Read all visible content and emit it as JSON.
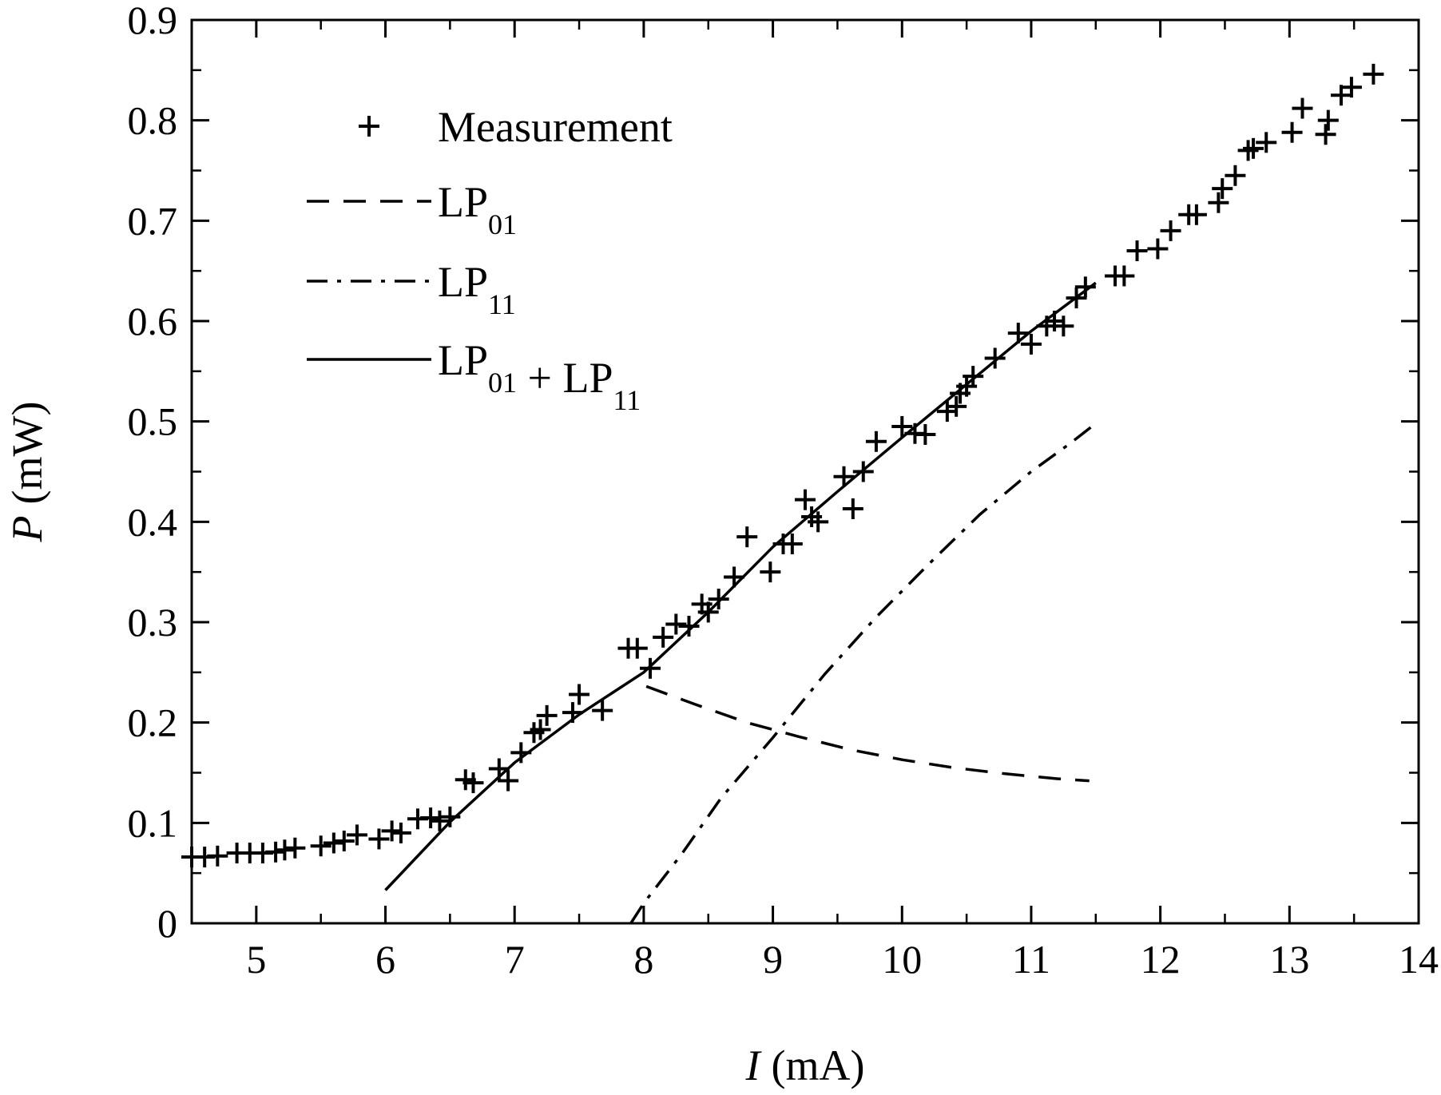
{
  "chart_data": {
    "type": "scatter",
    "title": "",
    "xlabel": {
      "symbol": "I",
      "unit": "(mA)"
    },
    "ylabel": {
      "symbol": "P",
      "unit": "(mW)"
    },
    "xlim": [
      4.5,
      14
    ],
    "ylim": [
      0,
      0.9
    ],
    "x_ticks": [
      "5",
      "6",
      "7",
      "8",
      "9",
      "10",
      "11",
      "12",
      "13",
      "14"
    ],
    "y_ticks": [
      "0",
      "0.1",
      "0.2",
      "0.3",
      "0.4",
      "0.5",
      "0.6",
      "0.7",
      "0.8",
      "0.9"
    ],
    "grid": false,
    "legend_position": "top-left",
    "legend": [
      {
        "key": "measurement",
        "marker": "plus",
        "text": "Measurement"
      },
      {
        "key": "lp01",
        "line": "dashed",
        "parts": [
          {
            "t": "LP",
            "sub": "01"
          }
        ]
      },
      {
        "key": "lp11",
        "line": "dash-dot",
        "parts": [
          {
            "t": "LP",
            "sub": "11"
          }
        ]
      },
      {
        "key": "sum",
        "line": "solid",
        "parts": [
          {
            "t": "LP",
            "sub": "01"
          },
          {
            "t": " + LP",
            "sub": "11"
          }
        ]
      }
    ],
    "series": [
      {
        "key": "measurement",
        "style": "plus",
        "points": [
          [
            4.5,
            0.066
          ],
          [
            4.6,
            0.066
          ],
          [
            4.7,
            0.067
          ],
          [
            4.85,
            0.07
          ],
          [
            4.95,
            0.07
          ],
          [
            5.05,
            0.07
          ],
          [
            5.15,
            0.071
          ],
          [
            5.22,
            0.073
          ],
          [
            5.3,
            0.075
          ],
          [
            5.5,
            0.077
          ],
          [
            5.6,
            0.08
          ],
          [
            5.68,
            0.082
          ],
          [
            5.78,
            0.088
          ],
          [
            5.95,
            0.084
          ],
          [
            6.05,
            0.092
          ],
          [
            6.12,
            0.09
          ],
          [
            6.25,
            0.104
          ],
          [
            6.35,
            0.105
          ],
          [
            6.42,
            0.102
          ],
          [
            6.5,
            0.106
          ],
          [
            6.62,
            0.143
          ],
          [
            6.68,
            0.14
          ],
          [
            6.88,
            0.154
          ],
          [
            6.95,
            0.142
          ],
          [
            7.05,
            0.17
          ],
          [
            7.15,
            0.19
          ],
          [
            7.2,
            0.193
          ],
          [
            7.25,
            0.207
          ],
          [
            7.45,
            0.21
          ],
          [
            7.5,
            0.228
          ],
          [
            7.68,
            0.212
          ],
          [
            7.88,
            0.274
          ],
          [
            7.95,
            0.274
          ],
          [
            8.05,
            0.254
          ],
          [
            8.15,
            0.285
          ],
          [
            8.25,
            0.298
          ],
          [
            8.35,
            0.296
          ],
          [
            8.45,
            0.318
          ],
          [
            8.5,
            0.31
          ],
          [
            8.58,
            0.323
          ],
          [
            8.7,
            0.345
          ],
          [
            8.8,
            0.385
          ],
          [
            8.98,
            0.35
          ],
          [
            9.08,
            0.378
          ],
          [
            9.15,
            0.378
          ],
          [
            9.25,
            0.422
          ],
          [
            9.3,
            0.405
          ],
          [
            9.35,
            0.4
          ],
          [
            9.55,
            0.445
          ],
          [
            9.62,
            0.413
          ],
          [
            9.7,
            0.45
          ],
          [
            9.8,
            0.48
          ],
          [
            10.0,
            0.495
          ],
          [
            10.1,
            0.488
          ],
          [
            10.18,
            0.487
          ],
          [
            10.35,
            0.51
          ],
          [
            10.42,
            0.515
          ],
          [
            10.45,
            0.528
          ],
          [
            10.5,
            0.535
          ],
          [
            10.55,
            0.545
          ],
          [
            10.72,
            0.563
          ],
          [
            10.9,
            0.588
          ],
          [
            11.0,
            0.577
          ],
          [
            11.12,
            0.595
          ],
          [
            11.18,
            0.6
          ],
          [
            11.25,
            0.595
          ],
          [
            11.35,
            0.623
          ],
          [
            11.42,
            0.634
          ],
          [
            11.65,
            0.645
          ],
          [
            11.72,
            0.645
          ],
          [
            11.82,
            0.67
          ],
          [
            11.98,
            0.672
          ],
          [
            12.08,
            0.69
          ],
          [
            12.22,
            0.706
          ],
          [
            12.28,
            0.706
          ],
          [
            12.45,
            0.718
          ],
          [
            12.48,
            0.732
          ],
          [
            12.58,
            0.745
          ],
          [
            12.68,
            0.77
          ],
          [
            12.72,
            0.772
          ],
          [
            12.82,
            0.778
          ],
          [
            13.02,
            0.788
          ],
          [
            13.1,
            0.812
          ],
          [
            13.28,
            0.786
          ],
          [
            13.3,
            0.8
          ],
          [
            13.4,
            0.825
          ],
          [
            13.48,
            0.833
          ],
          [
            13.65,
            0.846
          ]
        ]
      },
      {
        "key": "lp01",
        "style": "dashed",
        "points": [
          [
            8.02,
            0.236
          ],
          [
            8.4,
            0.218
          ],
          [
            8.8,
            0.2
          ],
          [
            9.2,
            0.186
          ],
          [
            9.6,
            0.173
          ],
          [
            10.0,
            0.163
          ],
          [
            10.4,
            0.155
          ],
          [
            10.8,
            0.149
          ],
          [
            11.2,
            0.144
          ],
          [
            11.45,
            0.142
          ]
        ]
      },
      {
        "key": "lp11",
        "style": "dash-dot",
        "points": [
          [
            7.9,
            0.0
          ],
          [
            8.0,
            0.02
          ],
          [
            8.3,
            0.07
          ],
          [
            8.6,
            0.125
          ],
          [
            9.0,
            0.185
          ],
          [
            9.4,
            0.248
          ],
          [
            9.8,
            0.305
          ],
          [
            10.2,
            0.357
          ],
          [
            10.6,
            0.407
          ],
          [
            11.0,
            0.45
          ],
          [
            11.3,
            0.478
          ],
          [
            11.47,
            0.495
          ]
        ]
      },
      {
        "key": "sum",
        "style": "solid",
        "points": [
          [
            6.0,
            0.033
          ],
          [
            6.5,
            0.101
          ],
          [
            7.0,
            0.16
          ],
          [
            7.5,
            0.208
          ],
          [
            8.0,
            0.25
          ],
          [
            8.5,
            0.31
          ],
          [
            9.0,
            0.375
          ],
          [
            9.5,
            0.43
          ],
          [
            10.0,
            0.484
          ],
          [
            10.5,
            0.537
          ],
          [
            11.0,
            0.59
          ],
          [
            11.5,
            0.638
          ]
        ]
      }
    ]
  }
}
